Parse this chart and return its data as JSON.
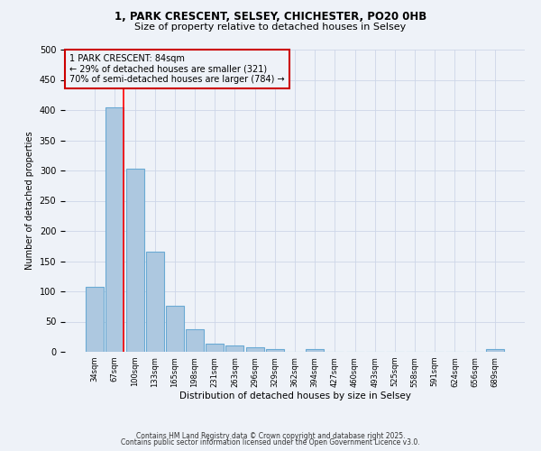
{
  "title_line1": "1, PARK CRESCENT, SELSEY, CHICHESTER, PO20 0HB",
  "title_line2": "Size of property relative to detached houses in Selsey",
  "xlabel": "Distribution of detached houses by size in Selsey",
  "ylabel": "Number of detached properties",
  "categories": [
    "34sqm",
    "67sqm",
    "100sqm",
    "133sqm",
    "165sqm",
    "198sqm",
    "231sqm",
    "263sqm",
    "296sqm",
    "329sqm",
    "362sqm",
    "394sqm",
    "427sqm",
    "460sqm",
    "493sqm",
    "525sqm",
    "558sqm",
    "591sqm",
    "624sqm",
    "656sqm",
    "689sqm"
  ],
  "values": [
    107,
    405,
    303,
    165,
    76,
    38,
    13,
    10,
    7,
    5,
    0,
    5,
    0,
    0,
    0,
    0,
    0,
    0,
    0,
    0,
    5
  ],
  "bar_color": "#adc8e0",
  "bar_edge_color": "#6aaad4",
  "bar_edge_width": 0.8,
  "grid_color": "#cdd6e8",
  "bg_color": "#eef2f8",
  "red_line_x": 1.45,
  "annotation_title": "1 PARK CRESCENT: 84sqm",
  "annotation_line1": "← 29% of detached houses are smaller (321)",
  "annotation_line2": "70% of semi-detached houses are larger (784) →",
  "annotation_box_color": "#cc0000",
  "ylim": [
    0,
    500
  ],
  "yticks": [
    0,
    50,
    100,
    150,
    200,
    250,
    300,
    350,
    400,
    450,
    500
  ],
  "figsize": [
    6.0,
    5.0
  ],
  "dpi": 100,
  "footnote1": "Contains HM Land Registry data © Crown copyright and database right 2025.",
  "footnote2": "Contains public sector information licensed under the Open Government Licence v3.0."
}
